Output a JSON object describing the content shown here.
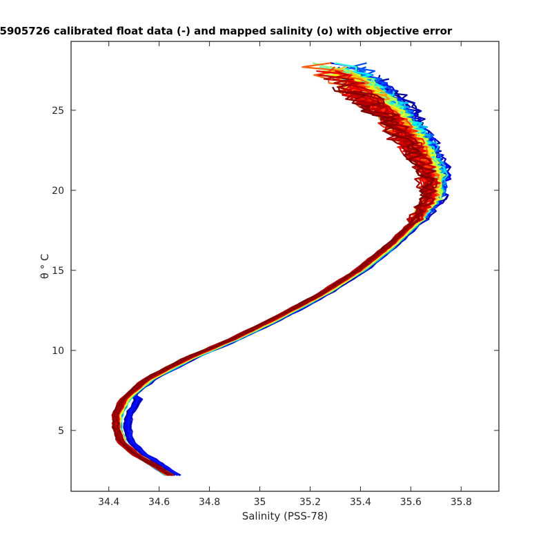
{
  "chart_data": {
    "type": "line",
    "title": "R5905726 calibrated float data (-) and mapped salinity (o) with objective error",
    "xlabel": "Salinity (PSS-78)",
    "ylabel": "θ ° C",
    "xlim": [
      34.25,
      35.95
    ],
    "ylim": [
      1.2,
      29.3
    ],
    "x_ticks": [
      34.4,
      34.6,
      34.8,
      35.0,
      35.2,
      35.4,
      35.6,
      35.8
    ],
    "x_tick_labels": [
      "34.4",
      "34.6",
      "34.8",
      "35",
      "35.2",
      "35.4",
      "35.6",
      "35.8"
    ],
    "y_ticks": [
      5,
      10,
      15,
      20,
      25
    ],
    "y_tick_labels": [
      "5",
      "10",
      "15",
      "20",
      "25"
    ],
    "grid": false,
    "colormap": "jet",
    "colors": [
      "#00008f",
      "#0000ff",
      "#0080ff",
      "#00ffff",
      "#80ff80",
      "#ffff00",
      "#ff8000",
      "#ff0000",
      "#800000"
    ],
    "profile_count": 90,
    "mean_profile": [
      {
        "x": 34.66,
        "y": 2.2
      },
      {
        "x": 34.6,
        "y": 2.8
      },
      {
        "x": 34.52,
        "y": 3.5
      },
      {
        "x": 34.46,
        "y": 4.3
      },
      {
        "x": 34.44,
        "y": 5.2
      },
      {
        "x": 34.44,
        "y": 6.0
      },
      {
        "x": 34.47,
        "y": 7.0
      },
      {
        "x": 34.56,
        "y": 8.2
      },
      {
        "x": 34.72,
        "y": 9.5
      },
      {
        "x": 34.9,
        "y": 10.7
      },
      {
        "x": 35.07,
        "y": 12.0
      },
      {
        "x": 35.25,
        "y": 13.5
      },
      {
        "x": 35.4,
        "y": 15.0
      },
      {
        "x": 35.52,
        "y": 16.5
      },
      {
        "x": 35.62,
        "y": 18.0
      },
      {
        "x": 35.68,
        "y": 19.5
      },
      {
        "x": 35.68,
        "y": 21.0
      },
      {
        "x": 35.62,
        "y": 22.5
      },
      {
        "x": 35.55,
        "y": 24.0
      },
      {
        "x": 35.45,
        "y": 25.5
      },
      {
        "x": 35.35,
        "y": 26.8
      },
      {
        "x": 35.25,
        "y": 27.8
      }
    ]
  }
}
